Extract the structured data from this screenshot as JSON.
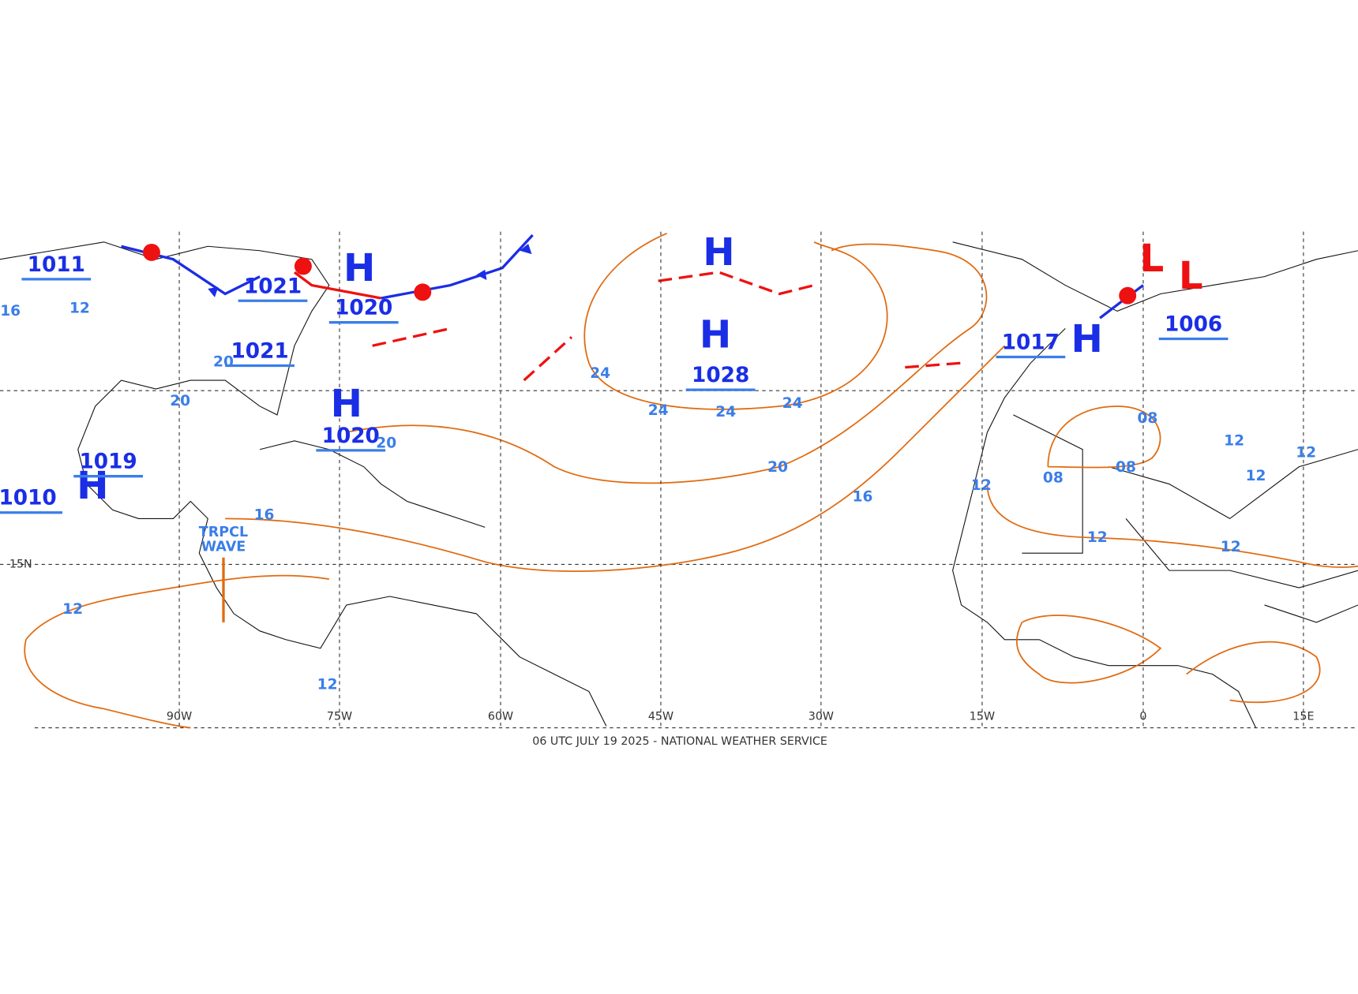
{
  "footer": "06 UTC JULY 19 2025 - NATIONAL WEATHER SERVICE",
  "longitude_labels": [
    "90W",
    "75W",
    "60W",
    "45W",
    "30W",
    "15W",
    "0",
    "15E"
  ],
  "latitude_labels": [
    "15N"
  ],
  "pressure_centers": [
    {
      "symbol": "H"
    },
    {
      "symbol": "H",
      "value": "1028"
    },
    {
      "symbol": "H",
      "value": "1020"
    },
    {
      "symbol": "H",
      "value": "1020"
    },
    {
      "symbol": "H",
      "value": "1019"
    },
    {
      "symbol": "H",
      "value": "1017"
    },
    {
      "symbol": "L"
    },
    {
      "symbol": "L",
      "value": "1006"
    }
  ],
  "other_pressures": [
    "1011",
    "1021",
    "1021",
    "1010"
  ],
  "isobar_labels": [
    "24",
    "24",
    "24",
    "24",
    "20",
    "20",
    "20",
    "20",
    "16",
    "16",
    "16",
    "12",
    "12",
    "12",
    "12",
    "12",
    "12",
    "12",
    "12",
    "12",
    "08",
    "08",
    "08"
  ],
  "annotations": [
    "TRPCL WAVE"
  ]
}
